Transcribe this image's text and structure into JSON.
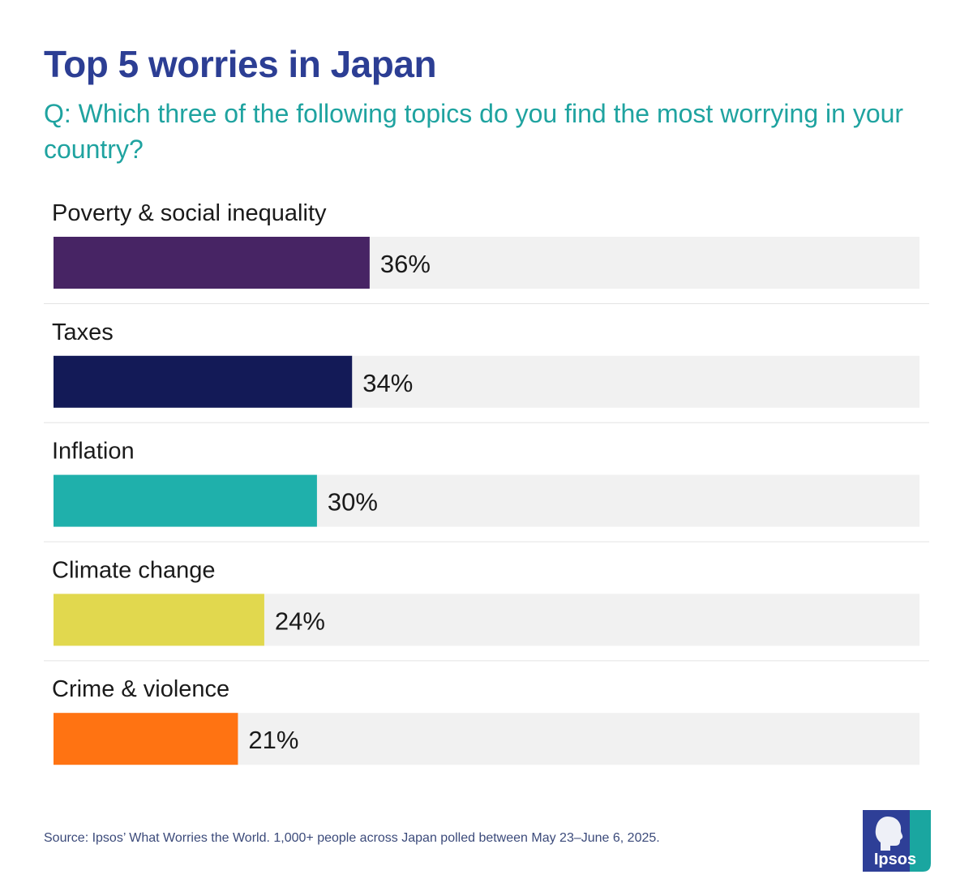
{
  "title": "Top 5 worries in Japan",
  "subtitle": "Q: Which three of the following topics do you find the most worrying in your country?",
  "source": "Source: Ipsos’ What Worries the World. 1,000+ people across Japan polled between May 23–June 6, 2025.",
  "logo": {
    "text": "Ipsos",
    "colors": [
      "#2e3f97",
      "#1aa6a0"
    ]
  },
  "chart_data": {
    "type": "bar",
    "orientation": "horizontal",
    "title": "Top 5 worries in Japan",
    "categories": [
      "Poverty & social inequality",
      "Taxes",
      "Inflation",
      "Climate change",
      "Crime & violence"
    ],
    "values": [
      36,
      34,
      30,
      24,
      21
    ],
    "value_labels": [
      "36%",
      "34%",
      "30%",
      "24%",
      "21%"
    ],
    "colors": [
      "#472464",
      "#131a57",
      "#1fb0ab",
      "#e1d84e",
      "#ff7312"
    ],
    "track_color": "#f1f1f1",
    "xlim": [
      0,
      100
    ],
    "grid": false,
    "legend": false
  }
}
